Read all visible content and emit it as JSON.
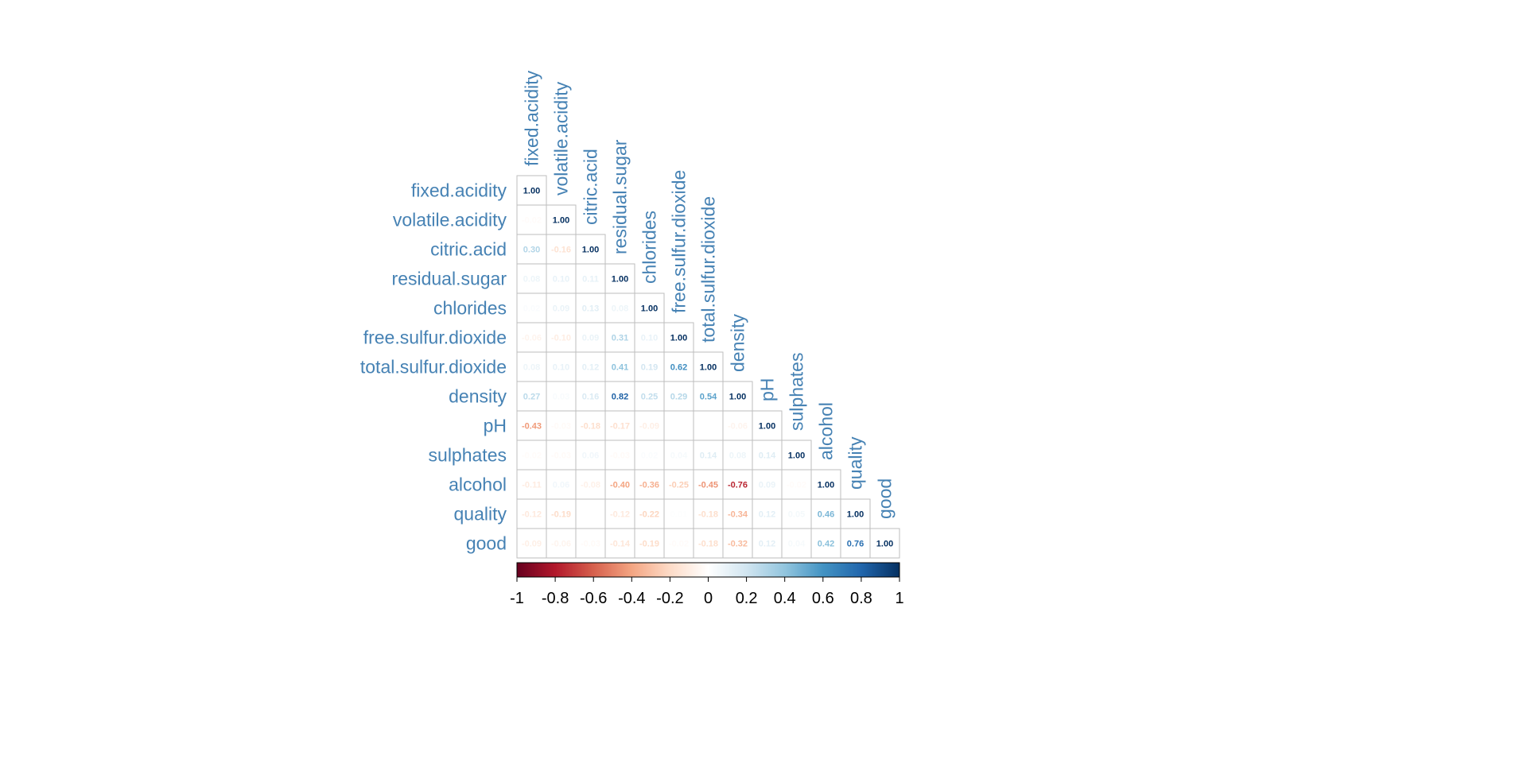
{
  "chart_data": {
    "type": "heatmap",
    "variables": [
      "fixed.acidity",
      "volatile.acidity",
      "citric.acid",
      "residual.sugar",
      "chlorides",
      "free.sulfur.dioxide",
      "total.sulfur.dioxide",
      "density",
      "pH",
      "sulphates",
      "alcohol",
      "quality",
      "good"
    ],
    "matrix_lower": [
      [
        1.0
      ],
      [
        -0.02,
        1.0
      ],
      [
        0.3,
        -0.16,
        1.0
      ],
      [
        0.08,
        0.1,
        0.11,
        1.0
      ],
      [
        0.02,
        0.09,
        0.13,
        0.08,
        1.0
      ],
      [
        -0.06,
        -0.1,
        0.09,
        0.31,
        0.1,
        1.0
      ],
      [
        0.08,
        0.1,
        0.12,
        0.41,
        0.19,
        0.62,
        1.0
      ],
      [
        0.27,
        0.03,
        0.16,
        0.82,
        0.25,
        0.29,
        0.54,
        1.0
      ],
      [
        -0.43,
        -0.03,
        -0.18,
        -0.17,
        -0.09,
        0.0,
        0.0,
        -0.06,
        1.0
      ],
      [
        -0.02,
        -0.03,
        0.06,
        -0.03,
        0.02,
        0.04,
        0.14,
        0.08,
        0.14,
        1.0
      ],
      [
        -0.11,
        0.06,
        -0.08,
        -0.4,
        -0.36,
        -0.25,
        -0.45,
        -0.76,
        0.09,
        -0.02,
        1.0
      ],
      [
        -0.12,
        -0.19,
        0.0,
        -0.12,
        -0.22,
        0.01,
        -0.18,
        -0.34,
        0.12,
        0.05,
        0.46,
        1.0
      ],
      [
        -0.09,
        -0.06,
        -0.03,
        -0.14,
        -0.19,
        -0.02,
        -0.18,
        -0.32,
        0.12,
        0.04,
        0.42,
        0.76,
        1.0
      ]
    ],
    "value_labels_hidden": [
      [
        8,
        5
      ],
      [
        8,
        6
      ],
      [
        11,
        2
      ]
    ],
    "color_scale": {
      "range": [
        -1,
        1
      ],
      "ticks": [
        "-1",
        "-0.8",
        "-0.6",
        "-0.4",
        "-0.2",
        "0",
        "0.2",
        "0.4",
        "0.6",
        "0.8",
        "1"
      ],
      "palette": [
        "#67001F",
        "#B2182B",
        "#D6604D",
        "#F4A582",
        "#FDDBC7",
        "#FFFFFF",
        "#D1E5F0",
        "#92C5DE",
        "#4393C3",
        "#2166AC",
        "#053061"
      ]
    },
    "label_color": "#4682B4",
    "grid_color": "#BEBEBE",
    "legend_placement": "bottom"
  }
}
